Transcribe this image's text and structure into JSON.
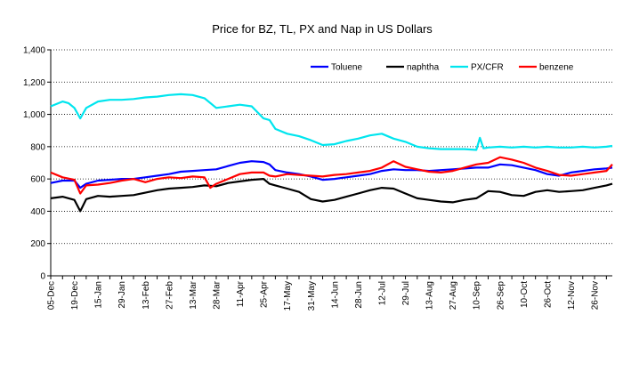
{
  "chart_data": {
    "type": "line",
    "title": "Price for BZ, TL, PX and Nap in US Dollars",
    "xlabel": "",
    "ylabel": "",
    "ylim": [
      0,
      1400
    ],
    "yticks": [
      0,
      200,
      400,
      600,
      800,
      1000,
      1200,
      1400
    ],
    "ytick_labels": [
      "0",
      "200",
      "400",
      "600",
      "800",
      "1,000",
      "1,200",
      "1,400"
    ],
    "grid": "horizontal dotted",
    "legend_position": "top-right",
    "x_labels": [
      "05-Dec",
      "19-Dec",
      "15-Jan",
      "29-Jan",
      "13-Feb",
      "27-Feb",
      "13-Mar",
      "28-Mar",
      "11-Apr",
      "25-Apr",
      "17-May",
      "31-May",
      "14-Jun",
      "28-Jun",
      "12-Jul",
      "29-Jul",
      "13-Aug",
      "27-Aug",
      "10-Sep",
      "26-Sep",
      "10-Oct",
      "26-Oct",
      "12-Nov",
      "26-Nov"
    ],
    "x_positions": [
      0,
      2,
      4,
      6,
      8,
      10,
      12,
      14,
      16,
      18,
      20,
      22,
      24,
      26,
      28,
      30,
      32,
      34,
      36,
      38,
      40,
      42,
      44,
      46
    ],
    "x_range": [
      0,
      47.5
    ],
    "series": [
      {
        "name": "Toluene",
        "color": "#0000ff",
        "x": [
          0,
          1,
          2,
          2.5,
          3,
          4,
          5,
          6,
          7,
          8,
          9,
          10,
          11,
          12,
          13,
          14,
          15,
          16,
          17,
          18,
          18.5,
          19,
          20,
          21,
          22,
          23,
          24,
          25,
          26,
          27,
          28,
          29,
          30,
          31,
          32,
          33,
          34,
          35,
          36,
          37,
          38,
          39,
          40,
          41,
          42,
          43,
          44,
          45,
          46,
          47,
          47.5
        ],
        "values": [
          575,
          590,
          590,
          545,
          570,
          590,
          595,
          600,
          600,
          610,
          620,
          630,
          645,
          650,
          655,
          660,
          680,
          700,
          710,
          705,
          690,
          655,
          640,
          630,
          615,
          595,
          600,
          610,
          620,
          630,
          650,
          660,
          655,
          655,
          650,
          655,
          660,
          665,
          670,
          670,
          690,
          685,
          670,
          655,
          630,
          620,
          640,
          650,
          660,
          665,
          670
        ]
      },
      {
        "name": "naphtha",
        "color": "#000000",
        "x": [
          0,
          1,
          2,
          2.5,
          3,
          4,
          5,
          6,
          7,
          8,
          9,
          10,
          11,
          12,
          13,
          14,
          15,
          16,
          17,
          18,
          18.5,
          19,
          20,
          21,
          22,
          23,
          24,
          25,
          26,
          27,
          28,
          29,
          30,
          31,
          32,
          33,
          34,
          35,
          36,
          37,
          38,
          39,
          40,
          41,
          42,
          43,
          44,
          45,
          46,
          47,
          47.5
        ],
        "values": [
          480,
          490,
          470,
          400,
          475,
          495,
          490,
          495,
          500,
          515,
          530,
          540,
          545,
          550,
          560,
          555,
          575,
          585,
          595,
          600,
          570,
          560,
          540,
          520,
          475,
          460,
          470,
          490,
          510,
          530,
          545,
          540,
          510,
          480,
          470,
          460,
          455,
          470,
          480,
          525,
          520,
          500,
          495,
          520,
          530,
          520,
          525,
          530,
          545,
          560,
          570
        ]
      },
      {
        "name": "PX/CFR",
        "color": "#00e5ee",
        "x": [
          0,
          1,
          1.5,
          2,
          2.5,
          3,
          4,
          5,
          6,
          7,
          8,
          9,
          10,
          11,
          12,
          13,
          14,
          15,
          16,
          17,
          18,
          18.5,
          19,
          20,
          21,
          22,
          23,
          24,
          25,
          26,
          27,
          28,
          29,
          30,
          31,
          32,
          33,
          34,
          35,
          36,
          36.3,
          36.6,
          37,
          38,
          39,
          40,
          41,
          42,
          43,
          44,
          45,
          46,
          47,
          47.5
        ],
        "values": [
          1050,
          1080,
          1070,
          1040,
          975,
          1040,
          1080,
          1090,
          1090,
          1095,
          1105,
          1110,
          1120,
          1125,
          1120,
          1100,
          1040,
          1050,
          1060,
          1050,
          975,
          965,
          910,
          880,
          865,
          840,
          810,
          815,
          835,
          850,
          870,
          880,
          850,
          830,
          800,
          790,
          785,
          785,
          785,
          780,
          855,
          790,
          795,
          800,
          795,
          800,
          795,
          800,
          795,
          795,
          800,
          795,
          800,
          805
        ]
      },
      {
        "name": "benzene",
        "color": "#ff0000",
        "x": [
          0,
          1,
          2,
          2.5,
          3,
          4,
          5,
          6,
          7,
          8,
          9,
          10,
          11,
          12,
          13,
          13.5,
          14,
          15,
          16,
          17,
          18,
          18.5,
          19,
          20,
          21,
          22,
          23,
          24,
          25,
          26,
          27,
          28,
          29,
          30,
          31,
          32,
          33,
          34,
          35,
          36,
          37,
          38,
          39,
          40,
          41,
          42,
          43,
          44,
          45,
          46,
          47,
          47.5
        ],
        "values": [
          640,
          610,
          595,
          510,
          560,
          565,
          575,
          590,
          600,
          580,
          600,
          610,
          605,
          615,
          610,
          545,
          570,
          600,
          630,
          640,
          640,
          620,
          615,
          630,
          625,
          620,
          615,
          625,
          630,
          640,
          650,
          670,
          710,
          675,
          660,
          645,
          640,
          650,
          670,
          690,
          700,
          735,
          720,
          700,
          670,
          650,
          625,
          620,
          630,
          640,
          650,
          690
        ]
      }
    ]
  }
}
